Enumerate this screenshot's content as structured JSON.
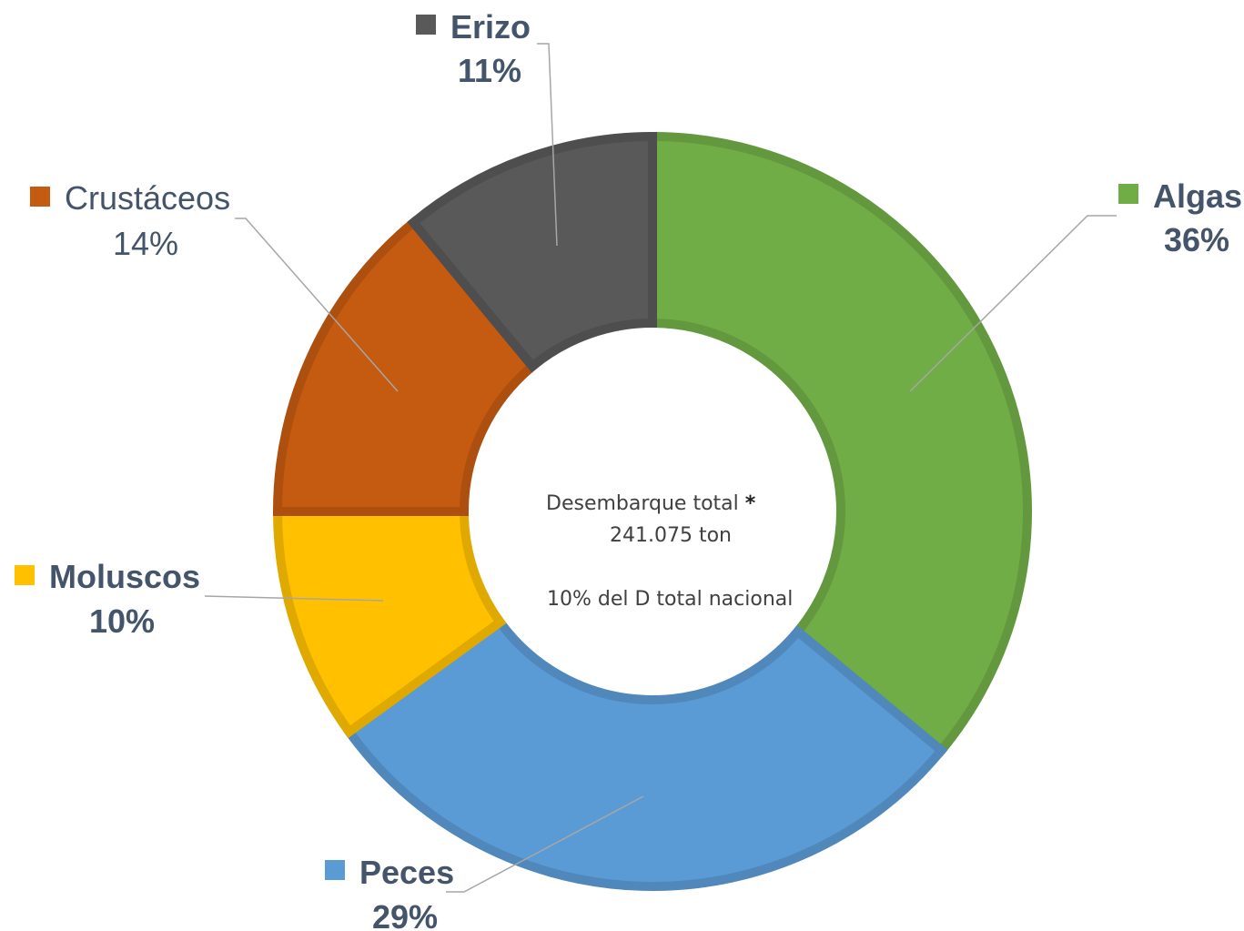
{
  "chart_data": {
    "type": "pie",
    "variant": "doughnut",
    "series": [
      {
        "label": "Algas",
        "value": 36,
        "value_label": "36%",
        "color": "#70AD47",
        "bold": true
      },
      {
        "label": "Peces",
        "value": 29,
        "value_label": "29%",
        "color": "#5B9BD5",
        "bold": true
      },
      {
        "label": "Moluscos",
        "value": 10,
        "value_label": "10%",
        "color": "#FFC000",
        "bold": true
      },
      {
        "label": "Crustáceos",
        "value": 14,
        "value_label": "14%",
        "color": "#C55A11",
        "bold": false
      },
      {
        "label": "Erizo",
        "value": 11,
        "value_label": "11%",
        "color": "#595959",
        "bold": true
      }
    ],
    "center_text": {
      "line1_label": "Desembarque total",
      "line1_mark": "*",
      "line2": "241.075 ton",
      "line3": "10% del D total nacional"
    },
    "label_text_color": "#44546A",
    "legend": "none"
  }
}
